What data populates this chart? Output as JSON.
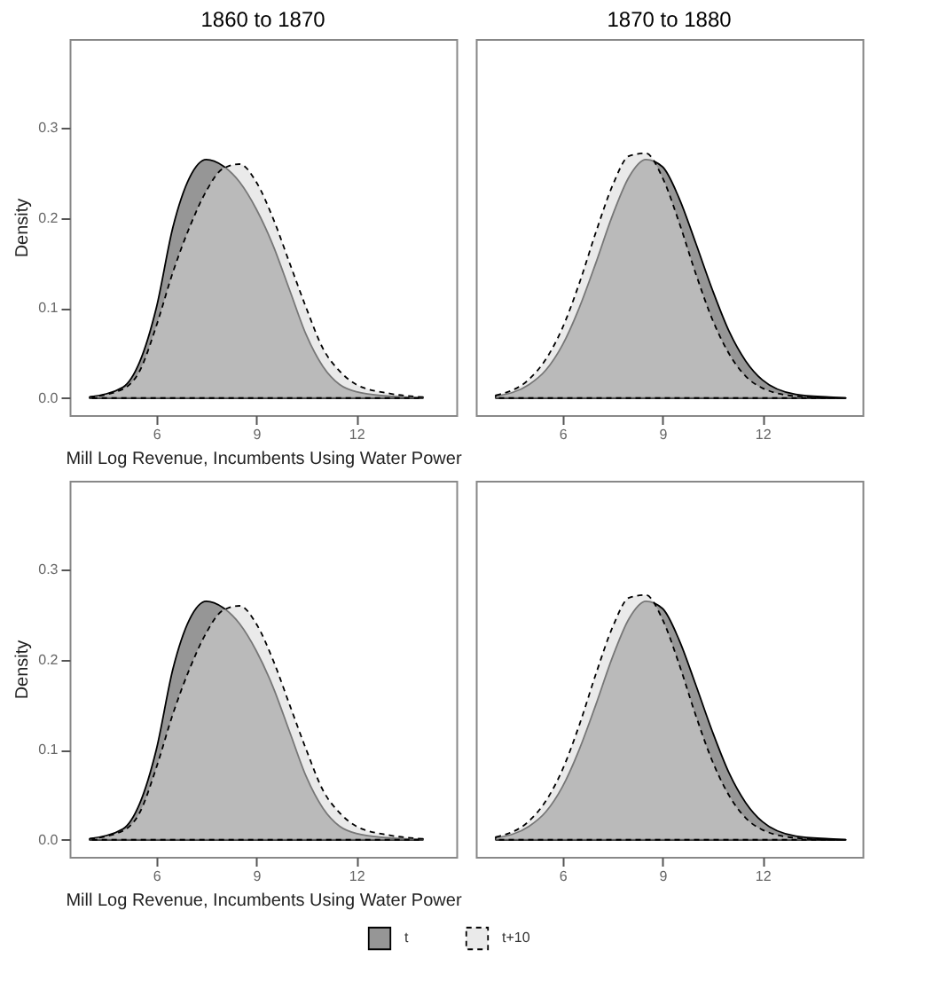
{
  "chart_data": [
    {
      "type": "area",
      "title": "1860 to 1870",
      "xlabel": "Mill Log Revenue, Incumbents Using Water Power",
      "ylabel": "Density",
      "xlim": [
        3.4,
        15.0
      ],
      "xticks": [
        6,
        9,
        12
      ],
      "ylim": [
        -0.019,
        0.399
      ],
      "yticks": [
        {
          "value": 0,
          "label": "0.0"
        },
        0.1,
        0.2,
        0.3
      ],
      "legend": "bottom",
      "x": [
        4,
        5,
        5.5,
        6,
        6.5,
        7,
        7.5,
        8,
        8.5,
        9,
        9.5,
        10,
        10.5,
        11,
        11.5,
        12,
        13,
        14
      ],
      "series": [
        {
          "name": "t",
          "color": "#404040",
          "line_style": "solid",
          "values": [
            0.001,
            0.012,
            0.04,
            0.1,
            0.19,
            0.245,
            0.265,
            0.258,
            0.24,
            0.21,
            0.17,
            0.12,
            0.07,
            0.035,
            0.015,
            0.007,
            0.002,
            0.0
          ]
        },
        {
          "name": "t+10",
          "color": "#d9d9d9",
          "line_style": "dashed",
          "values": [
            0.001,
            0.01,
            0.03,
            0.08,
            0.14,
            0.19,
            0.23,
            0.255,
            0.26,
            0.24,
            0.2,
            0.15,
            0.1,
            0.055,
            0.03,
            0.015,
            0.005,
            0.001
          ]
        }
      ]
    },
    {
      "type": "area",
      "title": "1870 to 1880",
      "xlim": [
        3.4,
        15.0
      ],
      "xticks": [
        6,
        9,
        12
      ],
      "ylim": [
        -0.019,
        0.399
      ],
      "tick_labels": "x",
      "x": [
        4,
        5,
        5.5,
        6,
        6.5,
        7,
        7.5,
        8,
        8.5,
        9,
        9.5,
        10,
        10.5,
        11,
        11.5,
        12,
        13,
        14,
        14.5
      ],
      "series": [
        {
          "name": "t",
          "color": "#404040",
          "line_style": "solid",
          "values": [
            0.002,
            0.015,
            0.031,
            0.059,
            0.1,
            0.15,
            0.203,
            0.246,
            0.265,
            0.257,
            0.222,
            0.172,
            0.12,
            0.074,
            0.041,
            0.02,
            0.004,
            0.001,
            0.0
          ]
        },
        {
          "name": "t+10",
          "color": "#d9d9d9",
          "line_style": "dashed",
          "values": [
            0.003,
            0.021,
            0.043,
            0.078,
            0.127,
            0.184,
            0.236,
            0.269,
            0.272,
            0.245,
            0.195,
            0.138,
            0.087,
            0.049,
            0.024,
            0.011,
            0.002,
            0.0,
            0.0
          ]
        }
      ]
    },
    {
      "type": "area",
      "xlabel": "Mill Log Revenue, Incumbents Using Water Power",
      "ylabel": "Density",
      "xlim": [
        3.4,
        15.0
      ],
      "xticks": [
        6,
        9,
        12
      ],
      "ylim": [
        -0.019,
        0.399
      ],
      "yticks": [
        {
          "value": 0,
          "label": "0.0"
        },
        0.1,
        0.2,
        0.3
      ],
      "x": [
        4,
        5,
        5.5,
        6,
        6.5,
        7,
        7.5,
        8,
        8.5,
        9,
        9.5,
        10,
        10.5,
        11,
        11.5,
        12,
        13,
        14
      ],
      "series": [
        {
          "name": "t",
          "color": "#404040",
          "line_style": "solid",
          "values": [
            0.001,
            0.012,
            0.04,
            0.1,
            0.19,
            0.245,
            0.265,
            0.258,
            0.24,
            0.21,
            0.17,
            0.12,
            0.07,
            0.035,
            0.015,
            0.007,
            0.002,
            0.0
          ]
        },
        {
          "name": "t+10",
          "color": "#d9d9d9",
          "line_style": "dashed",
          "values": [
            0.001,
            0.01,
            0.03,
            0.08,
            0.14,
            0.19,
            0.23,
            0.255,
            0.26,
            0.24,
            0.2,
            0.15,
            0.1,
            0.055,
            0.03,
            0.015,
            0.005,
            0.001
          ]
        }
      ]
    },
    {
      "type": "area",
      "xlim": [
        3.4,
        15.0
      ],
      "xticks": [
        6,
        9,
        12
      ],
      "ylim": [
        -0.019,
        0.399
      ],
      "tick_labels": "x",
      "x": [
        4,
        5,
        5.5,
        6,
        6.5,
        7,
        7.5,
        8,
        8.5,
        9,
        9.5,
        10,
        10.5,
        11,
        11.5,
        12,
        13,
        14,
        14.5
      ],
      "series": [
        {
          "name": "t",
          "color": "#404040",
          "line_style": "solid",
          "values": [
            0.002,
            0.015,
            0.031,
            0.059,
            0.1,
            0.15,
            0.203,
            0.246,
            0.265,
            0.257,
            0.222,
            0.172,
            0.12,
            0.074,
            0.041,
            0.02,
            0.004,
            0.001,
            0.0
          ]
        },
        {
          "name": "t+10",
          "color": "#d9d9d9",
          "line_style": "dashed",
          "values": [
            0.003,
            0.021,
            0.043,
            0.078,
            0.127,
            0.184,
            0.236,
            0.269,
            0.272,
            0.245,
            0.195,
            0.138,
            0.087,
            0.049,
            0.024,
            0.011,
            0.002,
            0.0,
            0.0
          ]
        }
      ]
    }
  ]
}
